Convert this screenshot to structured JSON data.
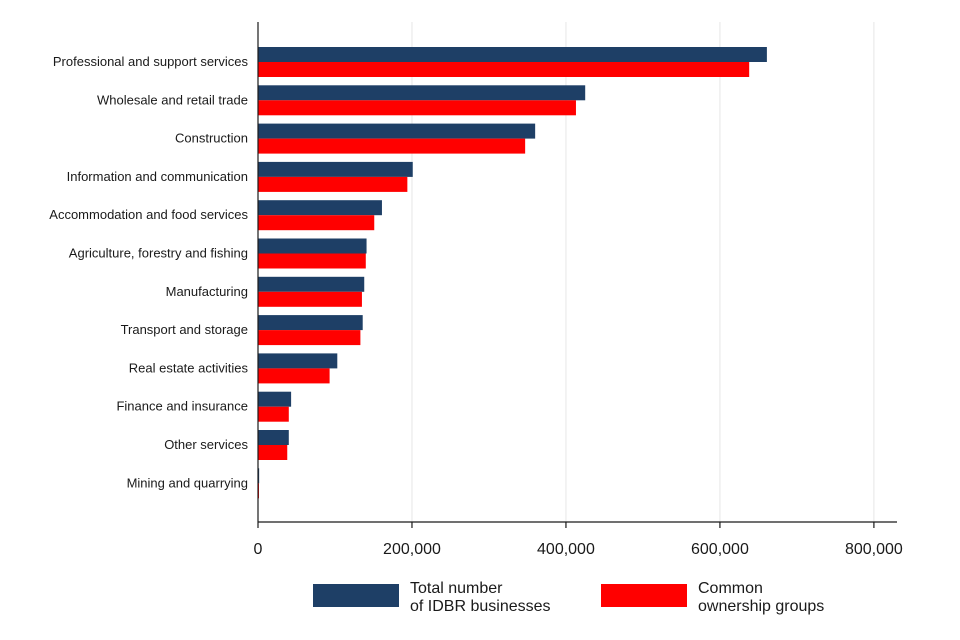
{
  "chart_data": {
    "type": "bar",
    "orientation": "horizontal",
    "categories": [
      "Professional and support services",
      "Wholesale and retail trade",
      "Construction",
      "Information and communication",
      "Accommodation and food services",
      "Agriculture, forestry and fishing",
      "Manufacturing",
      "Transport and storage",
      "Real estate activities",
      "Finance and insurance",
      "Other services",
      "Mining and quarrying"
    ],
    "series": [
      {
        "name": "Total number\nof IDBR businesses",
        "name_lines": [
          "Total number",
          "of IDBR businesses"
        ],
        "color": "#1e3f66",
        "values": [
          661000,
          425000,
          360000,
          201000,
          161000,
          141000,
          138000,
          136000,
          103000,
          43000,
          40000,
          1500
        ]
      },
      {
        "name": "Common\nownership groups",
        "name_lines": [
          "Common",
          "ownership groups"
        ],
        "color": "#ff0000",
        "values": [
          638000,
          413000,
          347000,
          194000,
          151000,
          140000,
          135000,
          133000,
          93000,
          40000,
          38000,
          1200
        ]
      }
    ],
    "xlim": [
      0,
      830000
    ],
    "xticks": [
      0,
      200000,
      400000,
      600000,
      800000
    ],
    "xtick_labels": [
      "0",
      "200,000",
      "400,000",
      "600,000",
      "800,000"
    ],
    "title": "",
    "xlabel": "",
    "ylabel": "",
    "grid": "vertical",
    "legend_position": "bottom"
  }
}
